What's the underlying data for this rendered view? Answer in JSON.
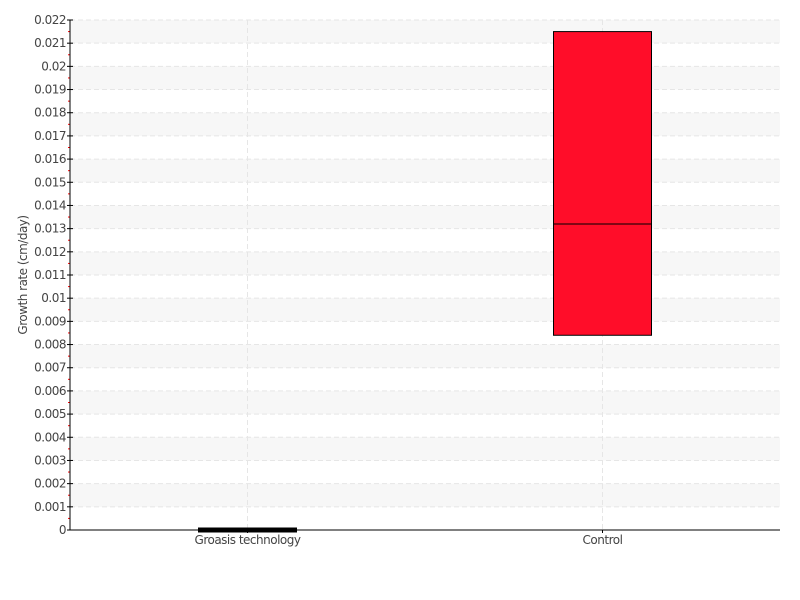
{
  "chart_data": {
    "type": "box",
    "title": "",
    "xlabel": "",
    "ylabel": "Growth rate (cm/day)",
    "ylim": [
      0,
      0.022
    ],
    "yticks": [
      "0",
      "0.001",
      "0.002",
      "0.003",
      "0.004",
      "0.005",
      "0.006",
      "0.007",
      "0.008",
      "0.009",
      "0.01",
      "0.011",
      "0.012",
      "0.013",
      "0.014",
      "0.015",
      "0.016",
      "0.017",
      "0.018",
      "0.019",
      "0.02",
      "0.021",
      "0.022"
    ],
    "grid": true,
    "categories": [
      "Groasis technology",
      "Control"
    ],
    "boxes": [
      {
        "category": "Groasis technology",
        "q1": 0,
        "median": 0,
        "q3": 0,
        "color": "#000000"
      },
      {
        "category": "Control",
        "q1": 0.0084,
        "median": 0.0132,
        "q3": 0.0215,
        "color": "#ff0d29"
      }
    ]
  }
}
